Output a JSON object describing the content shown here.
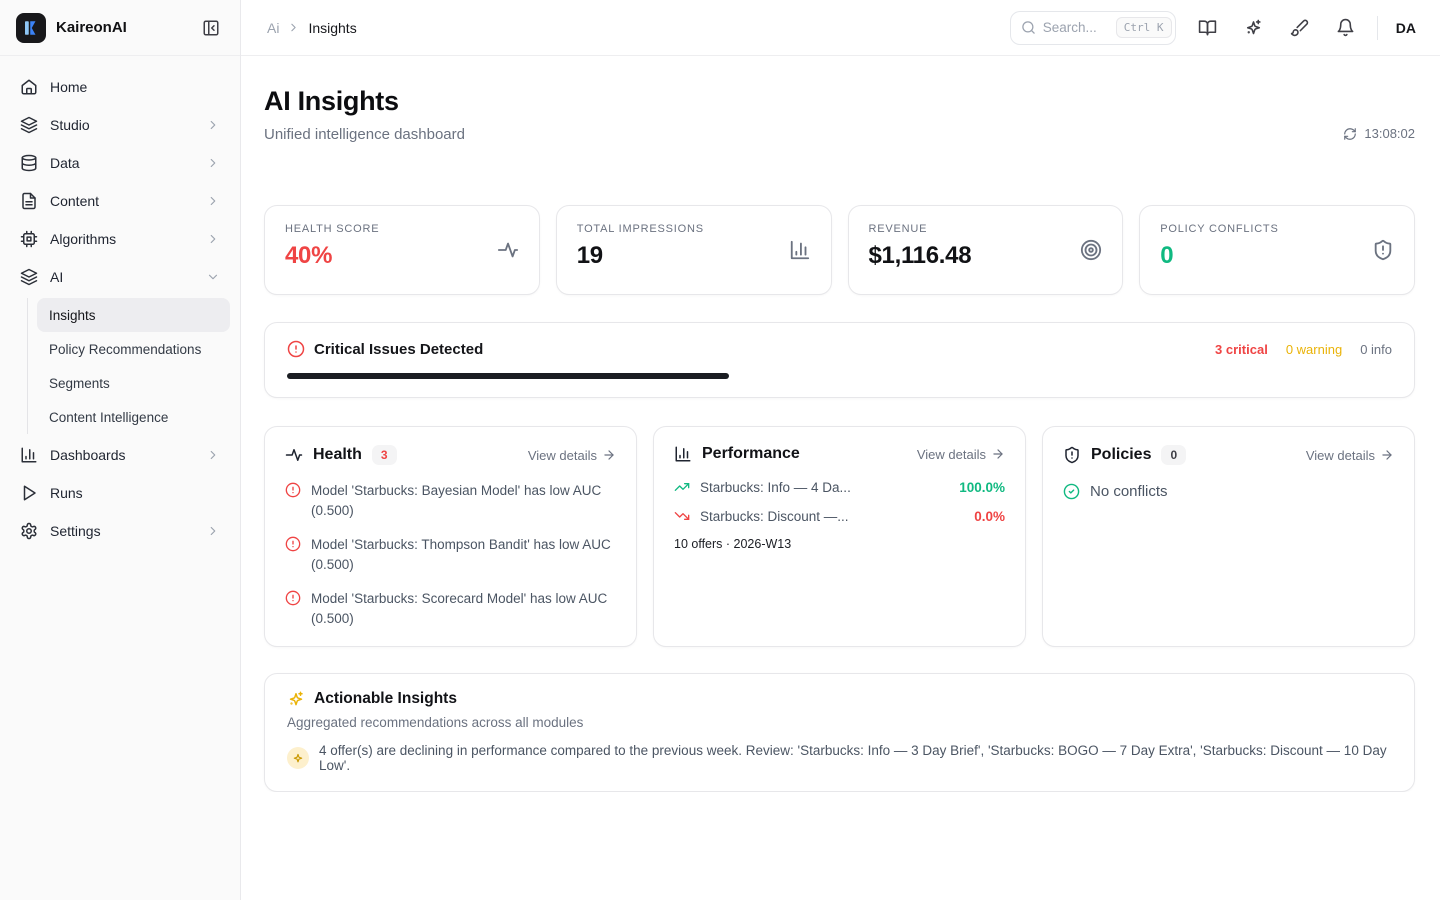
{
  "brand": {
    "name": "KaireonAI",
    "logo_icon": "kaireon-logo",
    "collapse_icon": "panel-left-close-icon"
  },
  "sidebar": {
    "items": [
      {
        "label": "Home",
        "icon": "home-icon",
        "expandable": false
      },
      {
        "label": "Studio",
        "icon": "layers-icon",
        "expandable": true
      },
      {
        "label": "Data",
        "icon": "database-icon",
        "expandable": true
      },
      {
        "label": "Content",
        "icon": "file-text-icon",
        "expandable": true
      },
      {
        "label": "Algorithms",
        "icon": "cpu-icon",
        "expandable": true
      },
      {
        "label": "AI",
        "icon": "layers-icon",
        "expanded": true
      }
    ],
    "ai_submenu": [
      {
        "label": "Insights",
        "active": true
      },
      {
        "label": "Policy Recommendations",
        "active": false
      },
      {
        "label": "Segments",
        "active": false
      },
      {
        "label": "Content Intelligence",
        "active": false
      }
    ],
    "bottom_items": [
      {
        "label": "Dashboards",
        "icon": "bar-chart-icon",
        "expandable": true
      },
      {
        "label": "Runs",
        "icon": "play-icon",
        "expandable": false
      },
      {
        "label": "Settings",
        "icon": "gear-icon",
        "expandable": true
      }
    ]
  },
  "header": {
    "breadcrumb": {
      "parent": "Ai",
      "current": "Insights"
    },
    "search": {
      "placeholder": "Search...",
      "shortcut": "Ctrl K"
    },
    "icons": [
      "book-open-icon",
      "sparkles-icon",
      "brush-icon",
      "bell-icon"
    ],
    "avatar": "DA"
  },
  "page": {
    "title": "AI Insights",
    "subtitle": "Unified intelligence dashboard",
    "refreshed_at": "13:08:02"
  },
  "stats": [
    {
      "label": "HEALTH SCORE",
      "value": "40%",
      "color": "#ef4444",
      "icon": "activity-icon"
    },
    {
      "label": "TOTAL IMPRESSIONS",
      "value": "19",
      "color": "#111215",
      "icon": "bar-chart-icon"
    },
    {
      "label": "REVENUE",
      "value": "$1,116.48",
      "color": "#111215",
      "icon": "target-icon"
    },
    {
      "label": "POLICY CONFLICTS",
      "value": "0",
      "color": "#10b981",
      "icon": "shield-alert-icon"
    }
  ],
  "critical_banner": {
    "title": "Critical Issues Detected",
    "counts": {
      "critical": "3 critical",
      "warning": "0 warning",
      "info": "0 info"
    },
    "bar_percent": 40,
    "colors": {
      "critical": "#ef4444",
      "warning": "#eab308",
      "info": "#6b7280",
      "bar": "#1a1d22"
    }
  },
  "health_card": {
    "title": "Health",
    "badge": "3",
    "view_details": "View details",
    "issues": [
      "Model 'Starbucks: Bayesian Model' has low AUC (0.500)",
      "Model 'Starbucks: Thompson Bandit' has low AUC (0.500)",
      "Model 'Starbucks: Scorecard Model' has low AUC (0.500)"
    ]
  },
  "performance_card": {
    "title": "Performance",
    "view_details": "View details",
    "rows": [
      {
        "label": "Starbucks: Info — 4 Da...",
        "value": "100.0%",
        "trend": "up",
        "color": "#10b981"
      },
      {
        "label": "Starbucks: Discount —...",
        "value": "0.0%",
        "trend": "down",
        "color": "#ef4444"
      }
    ],
    "footer": "10 offers · 2026-W13"
  },
  "policies_card": {
    "title": "Policies",
    "badge": "0",
    "view_details": "View details",
    "status": "No conflicts"
  },
  "actionable_card": {
    "title": "Actionable Insights",
    "subtitle": "Aggregated recommendations across all modules",
    "items": [
      "4 offer(s) are declining in performance compared to the previous week. Review: 'Starbucks: Info — 3 Day Brief', 'Starbucks: BOGO — 7 Day Extra', 'Starbucks: Discount — 10 Day Low'."
    ]
  }
}
